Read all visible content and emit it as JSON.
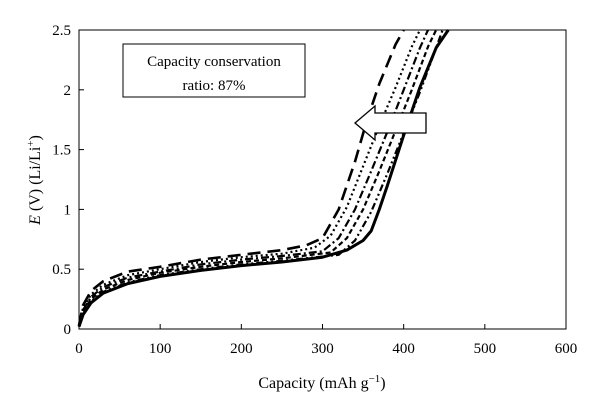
{
  "chart_data": {
    "type": "line",
    "title": "",
    "xlabel": {
      "main": "Capacity (mAh g",
      "sup": "−1",
      "close": ")"
    },
    "ylabel": {
      "italic": "E",
      "rest": " (V) (Li/Li",
      "sup": "+",
      "close": ")"
    },
    "xlim": [
      0,
      600
    ],
    "ylim": [
      0,
      2.5
    ],
    "x_ticks": [
      0,
      100,
      200,
      300,
      400,
      500,
      600
    ],
    "y_ticks": [
      0,
      0.5,
      1,
      1.5,
      2,
      2.5
    ],
    "y_tick_labels": [
      "0",
      "0.5",
      "1",
      "1.5",
      "2",
      "2.5"
    ],
    "grid": false,
    "annotation": {
      "line1": "Capacity conservation",
      "line2": "ratio: 87%"
    },
    "arrow_direction": "left",
    "series": [
      {
        "style": "solid-thick",
        "color": "#000000",
        "x": [
          0,
          5,
          15,
          30,
          60,
          100,
          150,
          200,
          250,
          300,
          330,
          350,
          360,
          370,
          380,
          400,
          420,
          440,
          455
        ],
        "y": [
          0.02,
          0.12,
          0.22,
          0.3,
          0.38,
          0.44,
          0.49,
          0.53,
          0.56,
          0.6,
          0.66,
          0.74,
          0.82,
          1.0,
          1.2,
          1.62,
          2.02,
          2.35,
          2.5
        ]
      },
      {
        "style": "long-dash",
        "color": "#000000",
        "x": [
          0,
          5,
          15,
          30,
          60,
          100,
          150,
          200,
          250,
          280,
          300,
          320,
          340,
          355,
          370,
          390,
          400
        ],
        "y": [
          0.03,
          0.2,
          0.32,
          0.4,
          0.48,
          0.52,
          0.58,
          0.62,
          0.66,
          0.7,
          0.76,
          1.0,
          1.4,
          1.75,
          2.05,
          2.38,
          2.5
        ]
      },
      {
        "style": "dotted",
        "color": "#000000",
        "x": [
          0,
          5,
          15,
          30,
          60,
          100,
          150,
          200,
          250,
          290,
          310,
          330,
          350,
          370,
          390,
          410,
          420
        ],
        "y": [
          0.03,
          0.18,
          0.29,
          0.37,
          0.45,
          0.5,
          0.56,
          0.6,
          0.63,
          0.68,
          0.78,
          1.02,
          1.36,
          1.7,
          2.02,
          2.36,
          2.5
        ]
      },
      {
        "style": "dash-dot",
        "color": "#000000",
        "x": [
          0,
          5,
          15,
          30,
          60,
          100,
          150,
          200,
          250,
          300,
          320,
          340,
          360,
          380,
          400,
          420,
          430
        ],
        "y": [
          0.03,
          0.16,
          0.27,
          0.35,
          0.43,
          0.48,
          0.54,
          0.58,
          0.61,
          0.65,
          0.76,
          1.0,
          1.32,
          1.65,
          2.0,
          2.35,
          2.5
        ]
      },
      {
        "style": "short-dash",
        "color": "#000000",
        "x": [
          0,
          5,
          15,
          30,
          60,
          100,
          150,
          200,
          250,
          310,
          330,
          350,
          370,
          390,
          410,
          430,
          440
        ],
        "y": [
          0.02,
          0.15,
          0.25,
          0.33,
          0.41,
          0.47,
          0.52,
          0.56,
          0.59,
          0.64,
          0.76,
          1.0,
          1.32,
          1.66,
          2.0,
          2.36,
          2.5
        ]
      },
      {
        "style": "dash-dot-dot",
        "color": "#000000",
        "x": [
          0,
          5,
          15,
          30,
          60,
          100,
          150,
          200,
          250,
          320,
          340,
          360,
          380,
          400,
          420,
          440,
          448
        ],
        "y": [
          0.02,
          0.13,
          0.23,
          0.31,
          0.39,
          0.45,
          0.5,
          0.54,
          0.57,
          0.62,
          0.74,
          0.98,
          1.3,
          1.64,
          1.98,
          2.35,
          2.5
        ]
      }
    ]
  }
}
